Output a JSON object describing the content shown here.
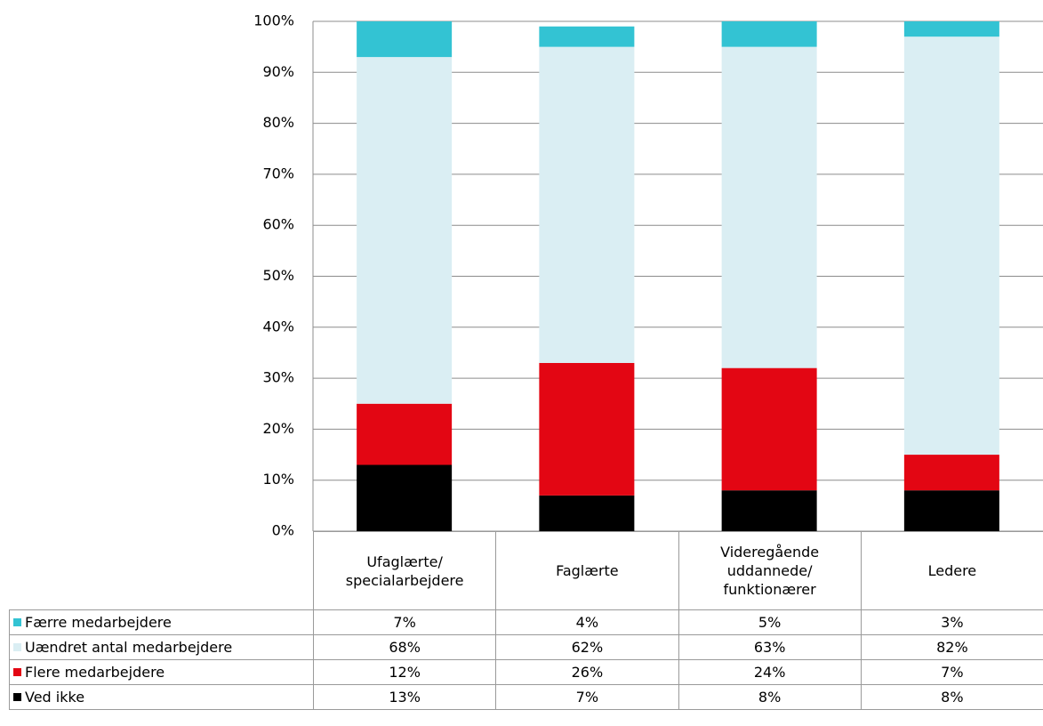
{
  "chart_data": {
    "type": "stacked_bar",
    "categories": [
      "Ufaglærte/\nspecialarbejdere",
      "Faglærte",
      "Videregående\nuddannede/\nfunktionærer",
      "Ledere"
    ],
    "series": [
      {
        "name": "Færre medarbejdere",
        "color": "#33c3d3",
        "values": [
          7,
          4,
          5,
          3
        ],
        "value_labels": [
          "7%",
          "4%",
          "5%",
          "3%"
        ]
      },
      {
        "name": "Uændret antal medarbejdere",
        "color": "#daeef3",
        "values": [
          68,
          62,
          63,
          82
        ],
        "value_labels": [
          "68%",
          "62%",
          "63%",
          "82%"
        ]
      },
      {
        "name": "Flere medarbejdere",
        "color": "#e30613",
        "values": [
          12,
          26,
          24,
          7
        ],
        "value_labels": [
          "12%",
          "26%",
          "24%",
          "7%"
        ]
      },
      {
        "name": "Ved ikke",
        "color": "#000000",
        "values": [
          13,
          7,
          8,
          8
        ],
        "value_labels": [
          "13%",
          "7%",
          "8%",
          "8%"
        ]
      }
    ],
    "ylim": [
      0,
      100
    ],
    "yticks": [
      {
        "value": 0,
        "label": "0%"
      },
      {
        "value": 10,
        "label": "10%"
      },
      {
        "value": 20,
        "label": "20%"
      },
      {
        "value": 30,
        "label": "30%"
      },
      {
        "value": 40,
        "label": "40%"
      },
      {
        "value": 50,
        "label": "50%"
      },
      {
        "value": 60,
        "label": "60%"
      },
      {
        "value": 70,
        "label": "70%"
      },
      {
        "value": 80,
        "label": "80%"
      },
      {
        "value": 90,
        "label": "90%"
      },
      {
        "value": 100,
        "label": "100%"
      }
    ],
    "grid": true
  }
}
